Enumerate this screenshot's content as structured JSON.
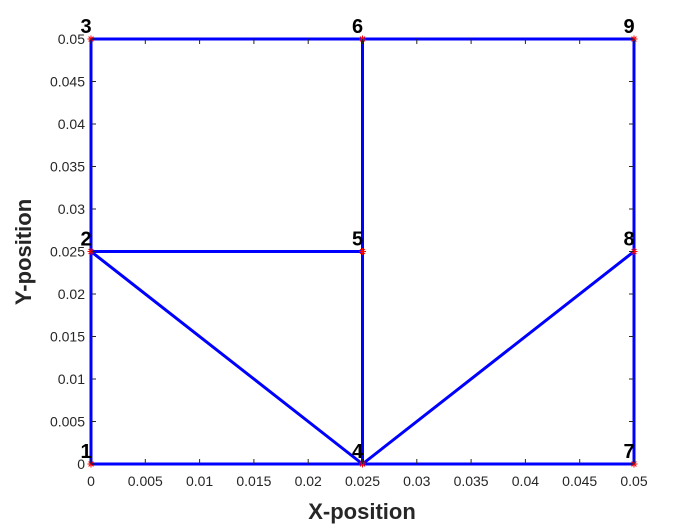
{
  "chart_data": {
    "type": "line",
    "title": "",
    "xlabel": "X-position",
    "ylabel": "Y-position",
    "xlim": [
      0,
      0.05
    ],
    "ylim": [
      0,
      0.05
    ],
    "grid": false,
    "xticks": [
      "0",
      "0.005",
      "0.01",
      "0.015",
      "0.02",
      "0.025",
      "0.03",
      "0.035",
      "0.04",
      "0.045",
      "0.05"
    ],
    "yticks": [
      "0",
      "0.005",
      "0.01",
      "0.015",
      "0.02",
      "0.025",
      "0.03",
      "0.035",
      "0.04",
      "0.045",
      "0.05"
    ],
    "nodes": [
      {
        "id": "1",
        "x": 0,
        "y": 0
      },
      {
        "id": "2",
        "x": 0,
        "y": 0.025
      },
      {
        "id": "3",
        "x": 0,
        "y": 0.05
      },
      {
        "id": "4",
        "x": 0.025,
        "y": 0
      },
      {
        "id": "5",
        "x": 0.025,
        "y": 0.025
      },
      {
        "id": "6",
        "x": 0.025,
        "y": 0.05
      },
      {
        "id": "7",
        "x": 0.05,
        "y": 0
      },
      {
        "id": "8",
        "x": 0.05,
        "y": 0.025
      },
      {
        "id": "9",
        "x": 0.05,
        "y": 0.05
      }
    ],
    "elements": [
      [
        "1",
        "2"
      ],
      [
        "2",
        "3"
      ],
      [
        "3",
        "6"
      ],
      [
        "6",
        "9"
      ],
      [
        "9",
        "8"
      ],
      [
        "8",
        "7"
      ],
      [
        "7",
        "4"
      ],
      [
        "4",
        "1"
      ],
      [
        "2",
        "5"
      ],
      [
        "5",
        "6"
      ],
      [
        "5",
        "4"
      ],
      [
        "2",
        "4"
      ],
      [
        "4",
        "8"
      ]
    ],
    "colors": {
      "line": "#0000ff",
      "marker": "#ff0000",
      "axis": "#262626"
    }
  }
}
